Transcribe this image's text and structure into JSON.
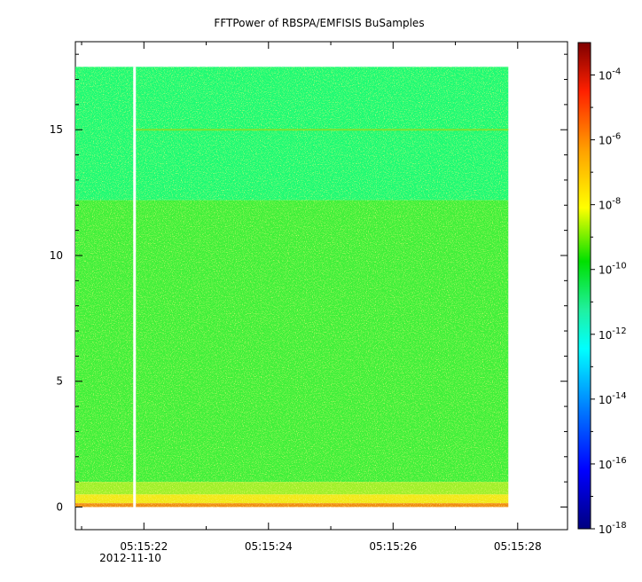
{
  "chart_data": {
    "type": "heatmap",
    "title": "FFTPower of RBSPA/EMFISIS  BuSamples",
    "xlabel": "",
    "ylabel": "",
    "x_ticks": [
      "05:15:22",
      "05:15:24",
      "05:15:26",
      "05:15:28"
    ],
    "x_tick_values": [
      22,
      24,
      26,
      28
    ],
    "x_date_label": "2012-11-10",
    "xlim": [
      20.9,
      28.8
    ],
    "data_x_range": [
      20.9,
      27.85
    ],
    "data_gap_at": 21.85,
    "y_ticks": [
      "0",
      "5",
      "10",
      "15"
    ],
    "y_tick_values": [
      0,
      5,
      10,
      15
    ],
    "ylim": [
      -0.9,
      18.5
    ],
    "data_y_range": [
      0,
      17.5
    ],
    "colorbar": {
      "scale": "log",
      "range": [
        1e-18,
        0.001
      ],
      "tick_exponents": [
        "-18",
        "-16",
        "-14",
        "-12",
        "-10",
        "-8",
        "-6",
        "-4"
      ],
      "tick_base": "10",
      "colormap": [
        "#00007f",
        "#0000ff",
        "#007fff",
        "#00ffff",
        "#7fff7f",
        "#00e000",
        "#ffff00",
        "#ff7f00",
        "#ff0000",
        "#7f0000"
      ]
    },
    "bands": [
      {
        "y_range": [
          12.2,
          17.5
        ],
        "power_exponent": -12.3,
        "color": "#1dfa74"
      },
      {
        "y_range": [
          1.0,
          12.2
        ],
        "power_exponent": -10.5,
        "color": "#3ff03a"
      },
      {
        "y_range": [
          0.5,
          1.0
        ],
        "power_exponent": -9.5,
        "color": "#9ef02a"
      },
      {
        "y_range": [
          0.15,
          0.5
        ],
        "power_exponent": -8.5,
        "color": "#f2e818"
      },
      {
        "y_range": [
          0,
          0.15
        ],
        "power_exponent": -7.5,
        "color": "#f08a10"
      }
    ],
    "line_features": [
      {
        "y": 15.0,
        "color": "#7fe030"
      }
    ],
    "grid": false
  }
}
